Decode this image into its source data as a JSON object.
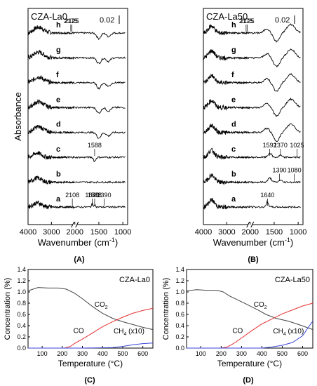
{
  "chart_data": [
    {
      "panel": "(A)",
      "type": "line",
      "title": "CZA-La0",
      "xlabel": "Wavenumber (cm⁻¹)",
      "ylabel": "Absorbance",
      "x_ticks": [
        4000,
        3000,
        2000,
        1500,
        1000
      ],
      "x_tick_labels": [
        "4000",
        "3000",
        "2000",
        "1500",
        "1000"
      ],
      "xlim": [
        4000,
        900
      ],
      "x_axis_break": 2000,
      "scale_bar": "0.02",
      "grid": false,
      "series": [
        {
          "label": "h",
          "offset": 8,
          "annotations": [
            "2175",
            "2125"
          ]
        },
        {
          "label": "g",
          "offset": 7,
          "annotations": []
        },
        {
          "label": "f",
          "offset": 6,
          "annotations": []
        },
        {
          "label": "e",
          "offset": 5,
          "annotations": []
        },
        {
          "label": "d",
          "offset": 4,
          "annotations": []
        },
        {
          "label": "c",
          "offset": 3,
          "annotations": [
            "1588"
          ]
        },
        {
          "label": "b",
          "offset": 2,
          "annotations": []
        },
        {
          "label": "a",
          "offset": 1,
          "annotations": [
            "2108",
            "1640",
            "1588",
            "1390"
          ]
        }
      ]
    },
    {
      "panel": "(B)",
      "type": "line",
      "title": "CZA-La50",
      "xlabel": "Wavenumber (cm⁻¹)",
      "ylabel": "",
      "x_ticks": [
        4000,
        3000,
        2000,
        1500,
        1000
      ],
      "x_tick_labels": [
        "4000",
        "3000",
        "2000",
        "1500",
        "1000"
      ],
      "xlim": [
        4000,
        900
      ],
      "x_axis_break": 2000,
      "scale_bar": "0.02",
      "grid": false,
      "series": [
        {
          "label": "h",
          "offset": 8,
          "annotations": [
            "2175",
            "2125"
          ]
        },
        {
          "label": "g",
          "offset": 7,
          "annotations": []
        },
        {
          "label": "f",
          "offset": 6,
          "annotations": []
        },
        {
          "label": "e",
          "offset": 5,
          "annotations": []
        },
        {
          "label": "d",
          "offset": 4,
          "annotations": []
        },
        {
          "label": "c",
          "offset": 3,
          "annotations": [
            "1592",
            "1370",
            "1025"
          ]
        },
        {
          "label": "b",
          "offset": 2,
          "annotations": [
            "1390",
            "1080"
          ]
        },
        {
          "label": "a",
          "offset": 1,
          "annotations": [
            "1640"
          ]
        }
      ]
    },
    {
      "panel": "(C)",
      "type": "line",
      "title": "CZA-La0",
      "xlabel": "Temperature (°C)",
      "ylabel": "Concentration (%)",
      "xlim": [
        30,
        650
      ],
      "ylim": [
        0.0,
        1.4
      ],
      "x_ticks": [
        100,
        200,
        300,
        400,
        500,
        600
      ],
      "y_ticks": [
        0.0,
        0.2,
        0.4,
        0.6,
        0.8,
        1.0,
        1.2,
        1.4
      ],
      "y_tick_labels": [
        "0.0",
        "0.2",
        "0.4",
        "0.6",
        "0.8",
        "1.0",
        "1.2",
        "1.4"
      ],
      "grid": false,
      "series": [
        {
          "name": "CO₂",
          "color": "#444444",
          "x": [
            30,
            80,
            130,
            180,
            220,
            260,
            300,
            350,
            400,
            450,
            500,
            550,
            600,
            650
          ],
          "y": [
            1.02,
            1.08,
            1.07,
            1.07,
            1.05,
            0.98,
            0.88,
            0.74,
            0.62,
            0.53,
            0.47,
            0.42,
            0.37,
            0.33
          ]
        },
        {
          "name": "CO",
          "color": "#e53030",
          "x": [
            30,
            150,
            210,
            240,
            260,
            300,
            350,
            400,
            450,
            500,
            550,
            600,
            650
          ],
          "y": [
            0.0,
            0.0,
            0.0,
            0.03,
            0.08,
            0.16,
            0.27,
            0.38,
            0.47,
            0.55,
            0.62,
            0.67,
            0.71
          ]
        },
        {
          "name": "CH₄ (x10)",
          "color": "#3a46d8",
          "x": [
            30,
            300,
            450,
            500,
            550,
            600,
            650
          ],
          "y": [
            0.0,
            0.0,
            0.01,
            0.03,
            0.06,
            0.08,
            0.09
          ]
        }
      ],
      "series_labels": [
        "CO₂",
        "CO",
        "CH₄ (x10)"
      ]
    },
    {
      "panel": "(D)",
      "type": "line",
      "title": "CZA-La50",
      "xlabel": "Temperature (°C)",
      "ylabel": "Concentration (%)",
      "xlim": [
        30,
        650
      ],
      "ylim": [
        0.0,
        1.4
      ],
      "x_ticks": [
        100,
        200,
        300,
        400,
        500,
        600
      ],
      "y_ticks": [
        0.0,
        0.2,
        0.4,
        0.6,
        0.8,
        1.0,
        1.2,
        1.4
      ],
      "y_tick_labels": [
        "0.0",
        "0.2",
        "0.4",
        "0.6",
        "0.8",
        "1.0",
        "1.2",
        "1.4"
      ],
      "grid": false,
      "series": [
        {
          "name": "CO₂",
          "color": "#444444",
          "x": [
            30,
            80,
            130,
            180,
            210,
            240,
            280,
            320,
            380,
            420,
            470,
            530,
            580,
            650
          ],
          "y": [
            1.02,
            1.04,
            1.03,
            1.03,
            1.0,
            0.93,
            0.86,
            0.79,
            0.68,
            0.6,
            0.53,
            0.48,
            0.42,
            0.33
          ]
        },
        {
          "name": "CO",
          "color": "#e53030",
          "x": [
            30,
            200,
            230,
            260,
            300,
            350,
            400,
            450,
            500,
            550,
            600,
            650
          ],
          "y": [
            0.0,
            0.0,
            0.02,
            0.08,
            0.18,
            0.31,
            0.43,
            0.52,
            0.61,
            0.68,
            0.75,
            0.8
          ]
        },
        {
          "name": "CH₄ (x10)",
          "color": "#3a46d8",
          "x": [
            30,
            400,
            450,
            500,
            550,
            600,
            630,
            650
          ],
          "y": [
            0.0,
            0.0,
            0.02,
            0.05,
            0.1,
            0.22,
            0.38,
            0.48
          ]
        }
      ],
      "series_labels": [
        "CO₂",
        "CO",
        "CH₄ (x10)"
      ]
    }
  ]
}
